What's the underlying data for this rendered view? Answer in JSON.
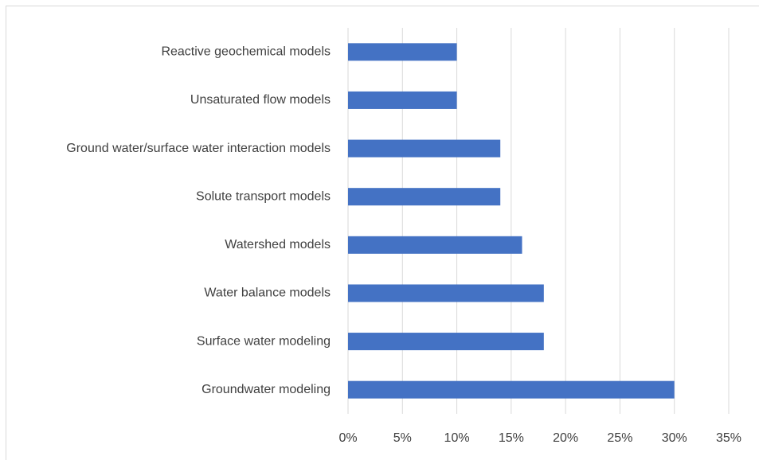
{
  "chart_data": {
    "type": "bar",
    "orientation": "horizontal",
    "categories": [
      "Reactive geochemical models",
      "Unsaturated flow models",
      "Ground water/surface water interaction models",
      "Solute transport models",
      "Watershed models",
      "Water balance models",
      "Surface water modeling",
      "Groundwater modeling"
    ],
    "values": [
      10,
      10,
      14,
      14,
      16,
      18,
      18,
      30
    ],
    "color": "#4472c4",
    "xlim": [
      0,
      35
    ],
    "xticks": [
      {
        "value": 0,
        "label": "0%"
      },
      {
        "value": 5,
        "label": "5%"
      },
      {
        "value": 10,
        "label": "10%"
      },
      {
        "value": 15,
        "label": "15%"
      },
      {
        "value": 20,
        "label": "20%"
      },
      {
        "value": 25,
        "label": "25%"
      },
      {
        "value": 30,
        "label": "30%"
      },
      {
        "value": 35,
        "label": "35%"
      }
    ],
    "grid": true
  }
}
